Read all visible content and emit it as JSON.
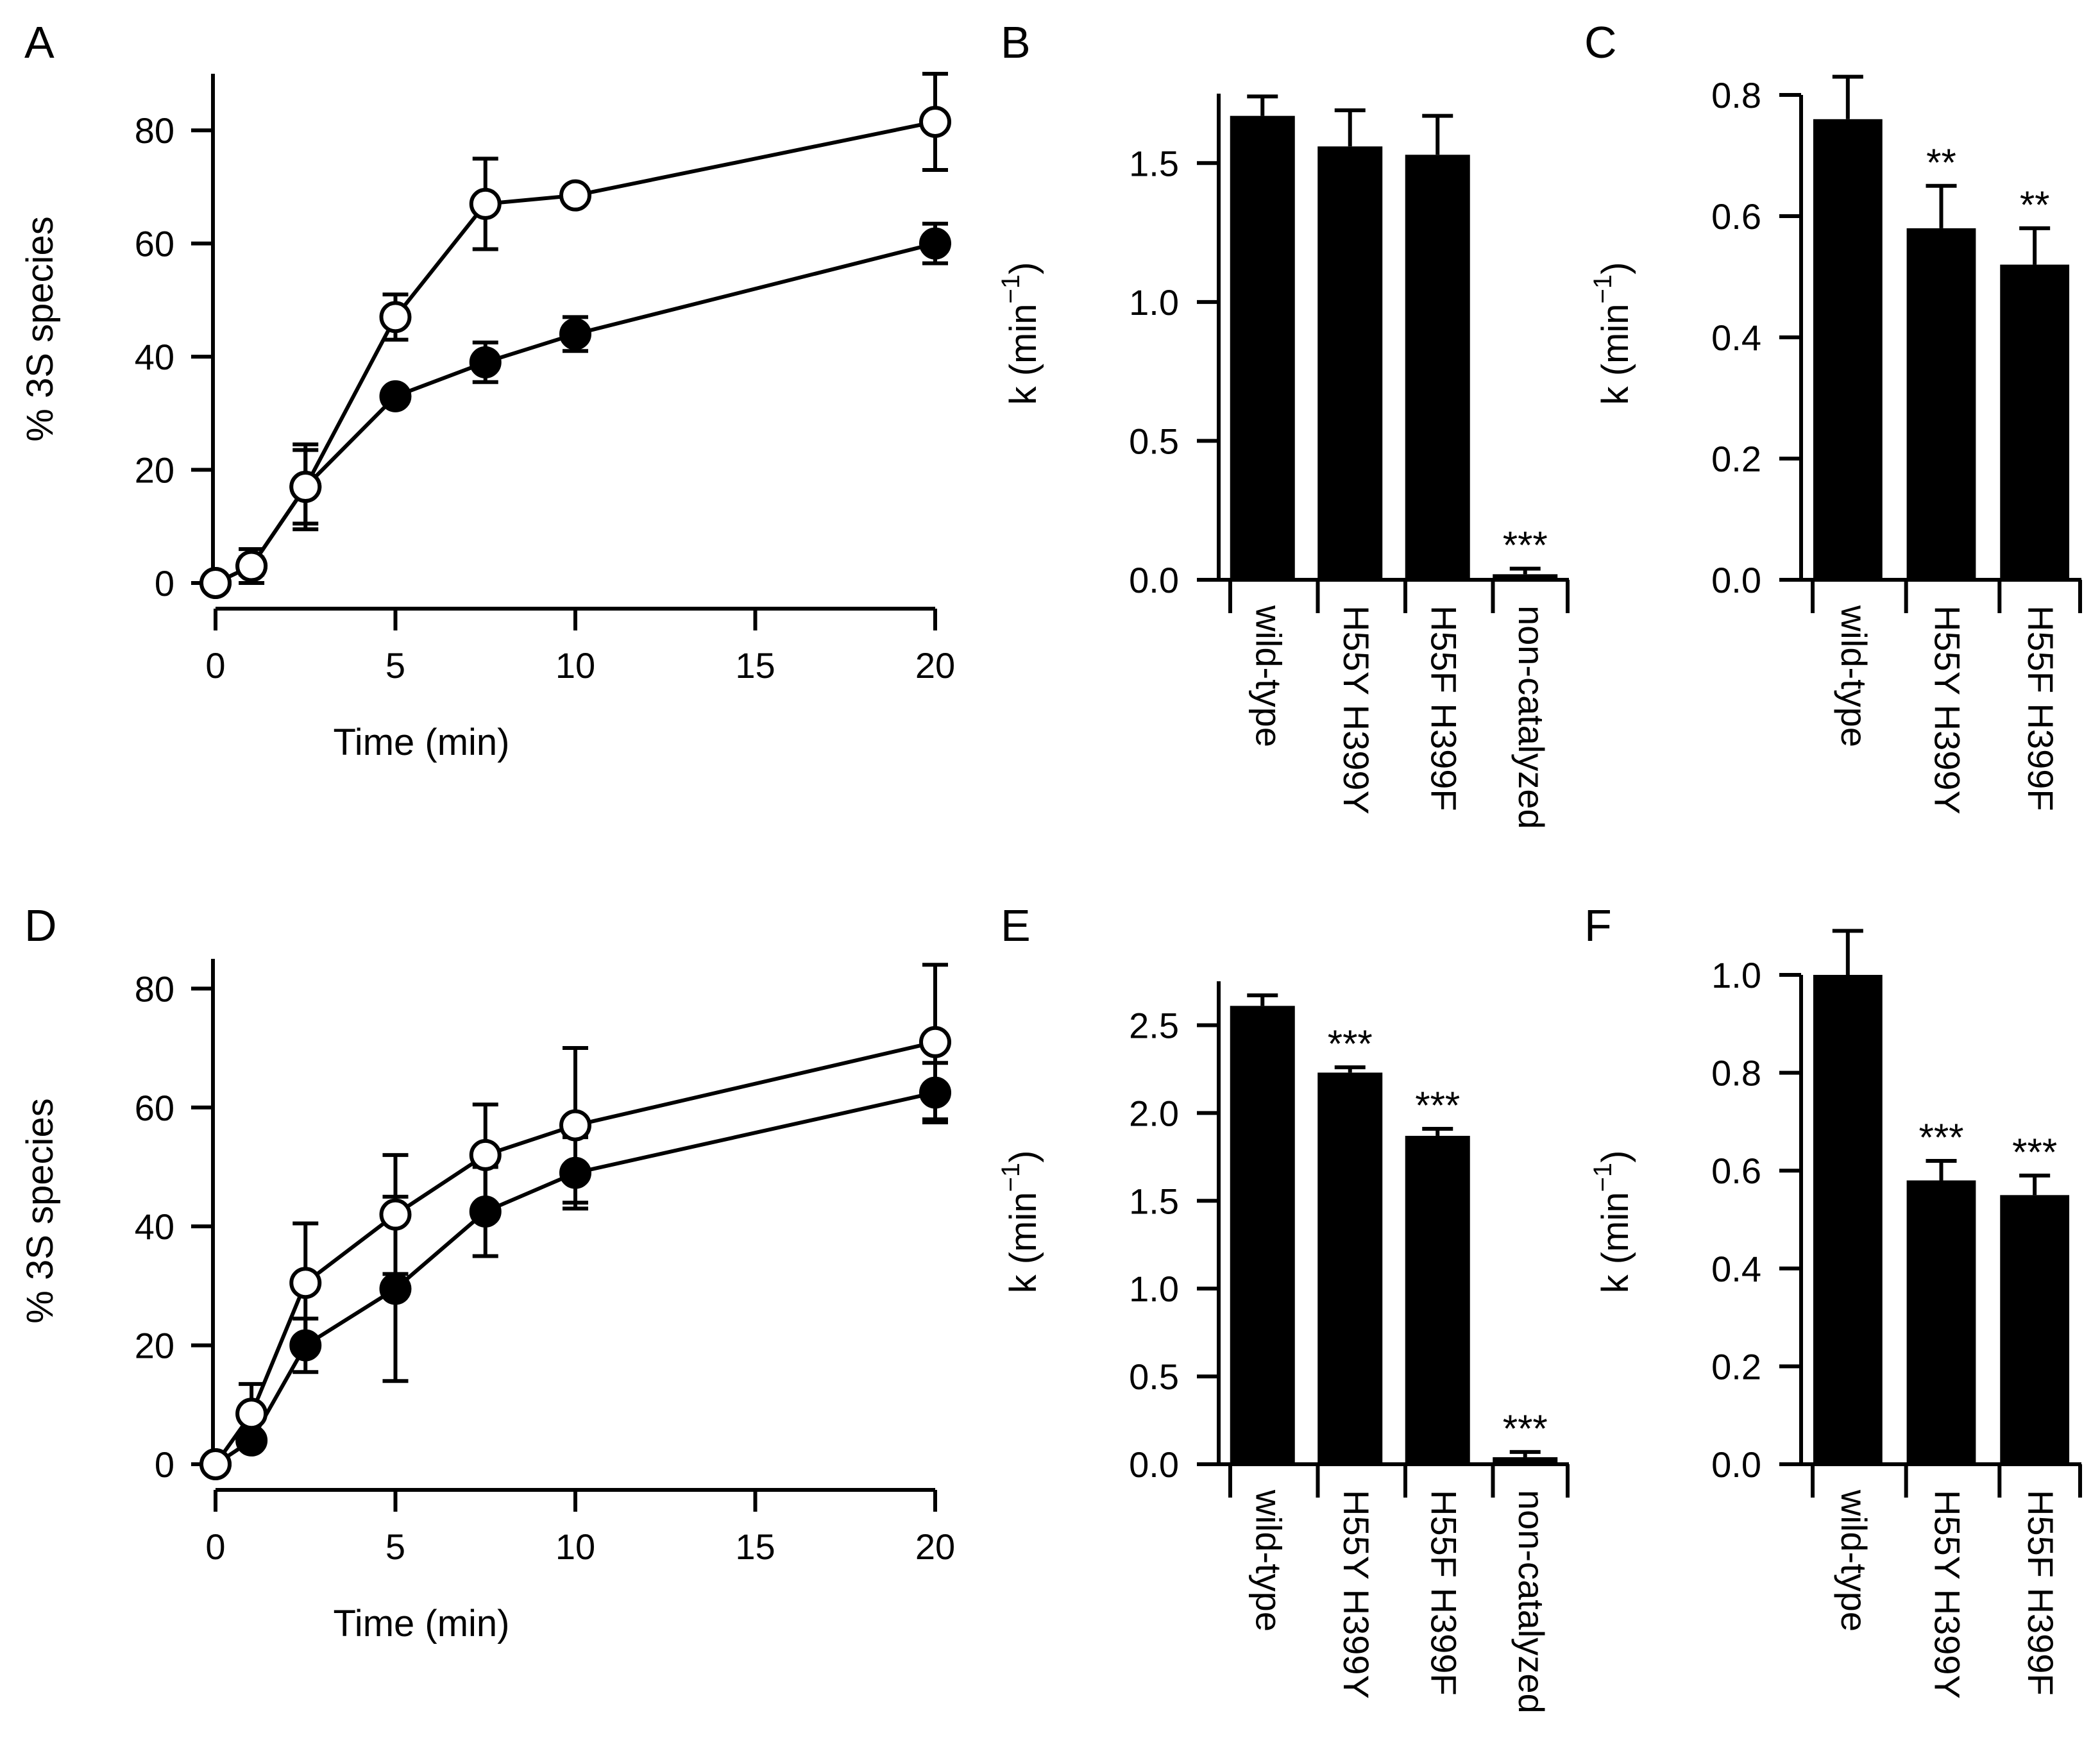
{
  "chart_data": [
    {
      "panel": "A",
      "type": "line",
      "title": "",
      "xlabel": "Time (min)",
      "ylabel": "% 3S species",
      "xlim": [
        0,
        20
      ],
      "ylim": [
        0,
        90
      ],
      "xticks": [
        "0",
        "5",
        "10",
        "15",
        "20"
      ],
      "yticks": [
        "0",
        "20",
        "40",
        "60",
        "80"
      ],
      "series": [
        {
          "name": "open",
          "marker": "open-circle",
          "x": [
            0,
            1,
            2.5,
            5,
            7.5,
            10,
            20
          ],
          "y": [
            0,
            3,
            17,
            47,
            67,
            68.5,
            81.5
          ],
          "err": [
            0,
            3,
            7.5,
            4,
            8,
            0,
            8.5
          ]
        },
        {
          "name": "filled",
          "marker": "filled-circle",
          "x": [
            0,
            1,
            2.5,
            5,
            7.5,
            10,
            20
          ],
          "y": [
            0,
            3,
            17,
            33,
            39,
            44,
            60
          ],
          "err": [
            0,
            1.5,
            6.5,
            0,
            3.5,
            3,
            3.5
          ]
        }
      ]
    },
    {
      "panel": "B",
      "type": "bar",
      "ylabel": "k (min",
      "ylabel_sup": "−1",
      "ylabel_close": ")",
      "ylim": [
        0,
        1.75
      ],
      "yticks": [
        "0.0",
        "0.5",
        "1.0",
        "1.5"
      ],
      "categories": [
        "wild-type",
        "H55Y H399Y",
        "H55F H399F",
        "non-catalyzed"
      ],
      "values": [
        1.67,
        1.56,
        1.53,
        0.02
      ],
      "err": [
        0.07,
        0.13,
        0.14,
        0.02
      ],
      "sig": [
        "",
        "",
        "",
        "***"
      ]
    },
    {
      "panel": "C",
      "type": "bar",
      "ylabel": "k (min",
      "ylabel_sup": "−1",
      "ylabel_close": ")",
      "ylim": [
        0,
        0.8
      ],
      "yticks": [
        "0.0",
        "0.2",
        "0.4",
        "0.6",
        "0.8"
      ],
      "categories": [
        "wild-type",
        "H55Y H399Y",
        "H55F H399F"
      ],
      "values": [
        0.76,
        0.58,
        0.52
      ],
      "err": [
        0.07,
        0.07,
        0.06
      ],
      "sig": [
        "",
        "**",
        "**"
      ]
    },
    {
      "panel": "D",
      "type": "line",
      "title": "",
      "xlabel": "Time (min)",
      "ylabel": "% 3S species",
      "xlim": [
        0,
        20
      ],
      "ylim": [
        0,
        85
      ],
      "xticks": [
        "0",
        "5",
        "10",
        "15",
        "20"
      ],
      "yticks": [
        "0",
        "20",
        "40",
        "60",
        "80"
      ],
      "series": [
        {
          "name": "open",
          "marker": "open-circle",
          "x": [
            0,
            1,
            2.5,
            5,
            7.5,
            10,
            20
          ],
          "y": [
            0,
            8.5,
            30.5,
            42,
            52,
            57,
            71
          ],
          "err": [
            0,
            5,
            10,
            10,
            8.5,
            13,
            13
          ]
        },
        {
          "name": "filled",
          "marker": "filled-circle",
          "x": [
            0,
            1,
            2.5,
            5,
            7.5,
            10,
            20
          ],
          "y": [
            0,
            4,
            20,
            29.5,
            42.5,
            49,
            62.5
          ],
          "err": [
            0,
            1,
            4.5,
            15.5,
            7.5,
            6,
            5
          ]
        }
      ]
    },
    {
      "panel": "E",
      "type": "bar",
      "ylabel": "k (min",
      "ylabel_sup": "−1",
      "ylabel_close": ")",
      "ylim": [
        0,
        2.75
      ],
      "yticks": [
        "0.0",
        "0.5",
        "1.0",
        "1.5",
        "2.0",
        "2.5"
      ],
      "categories": [
        "wild-type",
        "H55Y H399Y",
        "H55F H399F",
        "non-catalyzed"
      ],
      "values": [
        2.61,
        2.23,
        1.87,
        0.04
      ],
      "err": [
        0.06,
        0.03,
        0.04,
        0.03
      ],
      "sig": [
        "",
        "***",
        "***",
        "***"
      ]
    },
    {
      "panel": "F",
      "type": "bar",
      "ylabel": "k (min",
      "ylabel_sup": "−1",
      "ylabel_close": ")",
      "ylim": [
        0,
        1.0
      ],
      "yticks": [
        "0.0",
        "0.2",
        "0.4",
        "0.6",
        "0.8",
        "1.0"
      ],
      "categories": [
        "wild-type",
        "H55Y H399Y",
        "H55F H399F"
      ],
      "values": [
        1.0,
        0.58,
        0.55
      ],
      "err": [
        0.09,
        0.04,
        0.04
      ],
      "sig": [
        "",
        "***",
        "***"
      ]
    }
  ]
}
